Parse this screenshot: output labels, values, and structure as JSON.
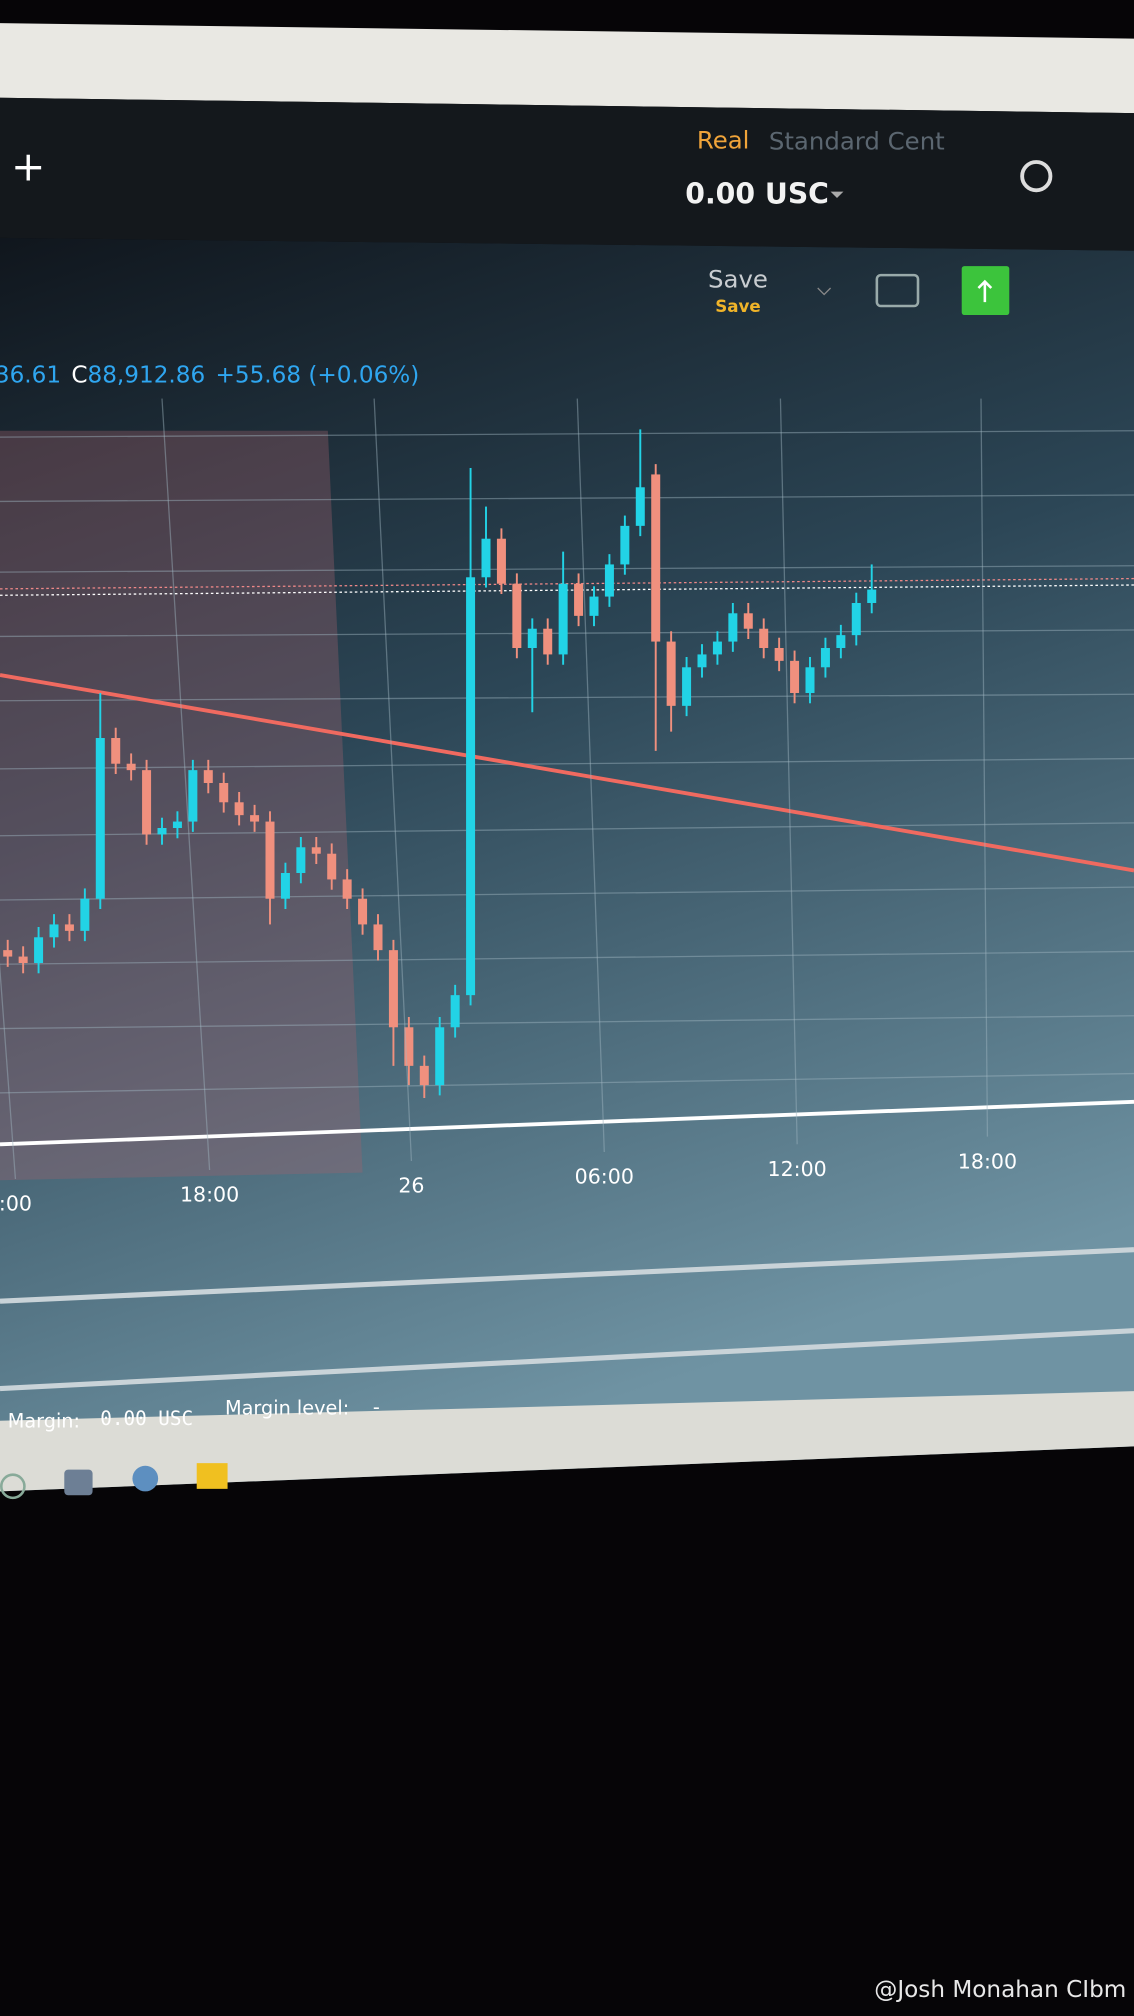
{
  "header": {
    "account_type": "Real",
    "account_class": "Standard Cent",
    "balance": "0.00 USC",
    "save_button": "Save",
    "save_sub": "Save"
  },
  "chart_data": {
    "type": "candlestick",
    "legend": {
      "prefix": "36.61",
      "close_label": "C",
      "close": "88,912.86",
      "change": "+55.68 (+0.06%)"
    },
    "x_labels": [
      ":00",
      "18:00",
      "26",
      "06:00",
      "12:00",
      "18:00"
    ],
    "up_color": "#22d3e6",
    "down_color": "#f0907e",
    "ylim": [
      88070,
      89250
    ],
    "open": [
      88352,
      88342,
      88332,
      88372,
      88392,
      88382,
      88432,
      88682,
      88642,
      88632,
      88532,
      88542,
      88552,
      88632,
      88612,
      88582,
      88562,
      88552,
      88432,
      88472,
      88512,
      88502,
      88462,
      88432,
      88392,
      88352,
      88232,
      88172,
      88142,
      88232,
      88282,
      88932,
      88992,
      88922,
      88822,
      88852,
      88812,
      88922,
      88872,
      88902,
      88952,
      89012,
      89092,
      88832,
      88732,
      88792,
      88812,
      88832,
      88876,
      88852,
      88822,
      88802,
      88752,
      88792,
      88822,
      88842,
      88892
    ],
    "high": [
      88368,
      88358,
      88388,
      88408,
      88408,
      88448,
      88752,
      88698,
      88658,
      88648,
      88558,
      88568,
      88648,
      88648,
      88628,
      88598,
      88578,
      88568,
      88488,
      88528,
      88528,
      88518,
      88478,
      88448,
      88408,
      88368,
      88248,
      88188,
      88248,
      88298,
      89102,
      89042,
      89008,
      88938,
      88868,
      88868,
      88972,
      88938,
      88918,
      88968,
      89028,
      89162,
      89108,
      88848,
      88808,
      88828,
      88848,
      88892,
      88892,
      88868,
      88838,
      88818,
      88808,
      88838,
      88858,
      88908,
      88952
    ],
    "low": [
      88326,
      88316,
      88316,
      88356,
      88366,
      88366,
      88416,
      88626,
      88616,
      88516,
      88516,
      88526,
      88536,
      88596,
      88566,
      88546,
      88536,
      88392,
      88416,
      88456,
      88486,
      88446,
      88416,
      88376,
      88336,
      88172,
      88142,
      88122,
      88126,
      88216,
      88266,
      88916,
      88906,
      88806,
      88722,
      88796,
      88796,
      88856,
      88856,
      88886,
      88936,
      88996,
      88662,
      88692,
      88716,
      88776,
      88796,
      88816,
      88836,
      88806,
      88786,
      88736,
      88736,
      88776,
      88806,
      88826,
      88876
    ],
    "close": [
      88342,
      88332,
      88372,
      88392,
      88382,
      88432,
      88682,
      88642,
      88632,
      88532,
      88542,
      88552,
      88632,
      88612,
      88582,
      88562,
      88552,
      88432,
      88472,
      88512,
      88502,
      88462,
      88432,
      88392,
      88352,
      88232,
      88172,
      88142,
      88232,
      88282,
      88932,
      88992,
      88922,
      88822,
      88852,
      88812,
      88922,
      88872,
      88902,
      88952,
      89012,
      89072,
      88832,
      88732,
      88792,
      88812,
      88832,
      88876,
      88852,
      88822,
      88802,
      88752,
      88792,
      88822,
      88842,
      88892,
      88912.86
    ]
  },
  "footer": {
    "margin_label": "Margin:",
    "margin_value": "0.00 USC",
    "margin_level_label": "Margin level:",
    "margin_level_value": "-"
  },
  "watermark": "@Josh Monahan CIbm"
}
